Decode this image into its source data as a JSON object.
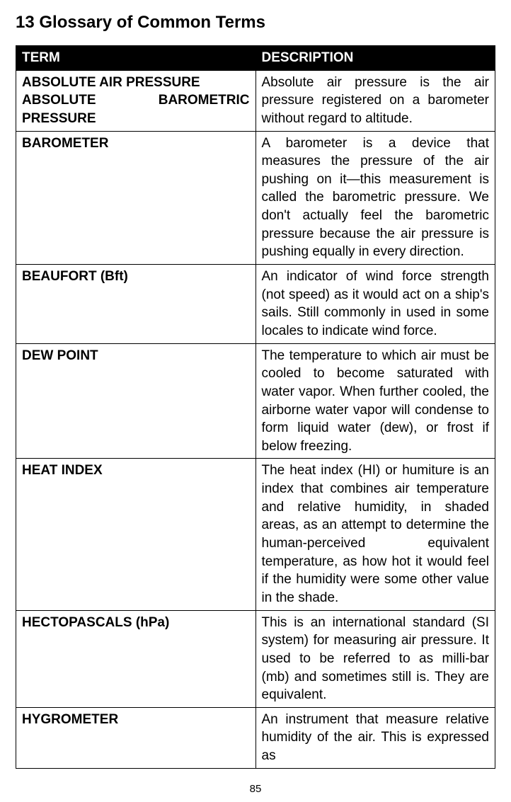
{
  "title": "13 Glossary of Common Terms",
  "headers": {
    "term": "TERM",
    "desc": "DESCRIPTION"
  },
  "rows": [
    {
      "termLines": [
        {
          "text": "ABSOLUTE AIR PRESSURE",
          "spread": false
        },
        {
          "text": "ABSOLUTE BAROMETRIC",
          "spread": true
        },
        {
          "text": "PRESSURE",
          "spread": false
        }
      ],
      "desc": "Absolute air pressure is the air pressure registered on a barometer without regard to altitude."
    },
    {
      "termLines": [
        {
          "text": "BAROMETER",
          "spread": false
        }
      ],
      "desc": "A barometer is a device that measures the pressure of the air pushing on it—this measurement is called the barometric pressure. We don't actually feel the barometric pressure because the air pressure is pushing equally in every direction."
    },
    {
      "termLines": [
        {
          "text": "BEAUFORT (Bft)",
          "spread": false
        }
      ],
      "desc": "An indicator of wind force strength (not speed) as it would act on a ship's sails. Still commonly in used in some locales to indicate wind force."
    },
    {
      "termLines": [
        {
          "text": "DEW POINT",
          "spread": false
        }
      ],
      "desc": "The temperature to which air must be cooled to become saturated with water vapor. When further cooled, the airborne water vapor will condense to form liquid water (dew), or frost if below freezing."
    },
    {
      "termLines": [
        {
          "text": "HEAT INDEX",
          "spread": false
        }
      ],
      "desc": "The heat index (HI) or humiture is an index that combines air temperature and relative humidity, in shaded areas, as an attempt to determine the human-perceived equivalent temperature, as how hot it would feel if the humidity were some other value in the shade."
    },
    {
      "termLines": [
        {
          "text": "HECTOPASCALS (hPa)",
          "spread": false
        }
      ],
      "desc": "This is an international standard (SI system) for measuring air pressure. It used to be referred to as milli-bar (mb) and sometimes still is. They are equivalent."
    },
    {
      "termLines": [
        {
          "text": "HYGROMETER",
          "spread": false
        }
      ],
      "desc": "An instrument that measure relative humidity of the air. This is expressed as"
    }
  ],
  "pageNumber": "85",
  "style": {
    "background": "#ffffff",
    "headerBg": "#000000",
    "headerColor": "#ffffff",
    "borderColor": "#000000",
    "titleFontSize": 24,
    "cellFontSize": 19,
    "termColWidthPct": 40,
    "descColWidthPct": 60,
    "descAlign": "justify"
  }
}
